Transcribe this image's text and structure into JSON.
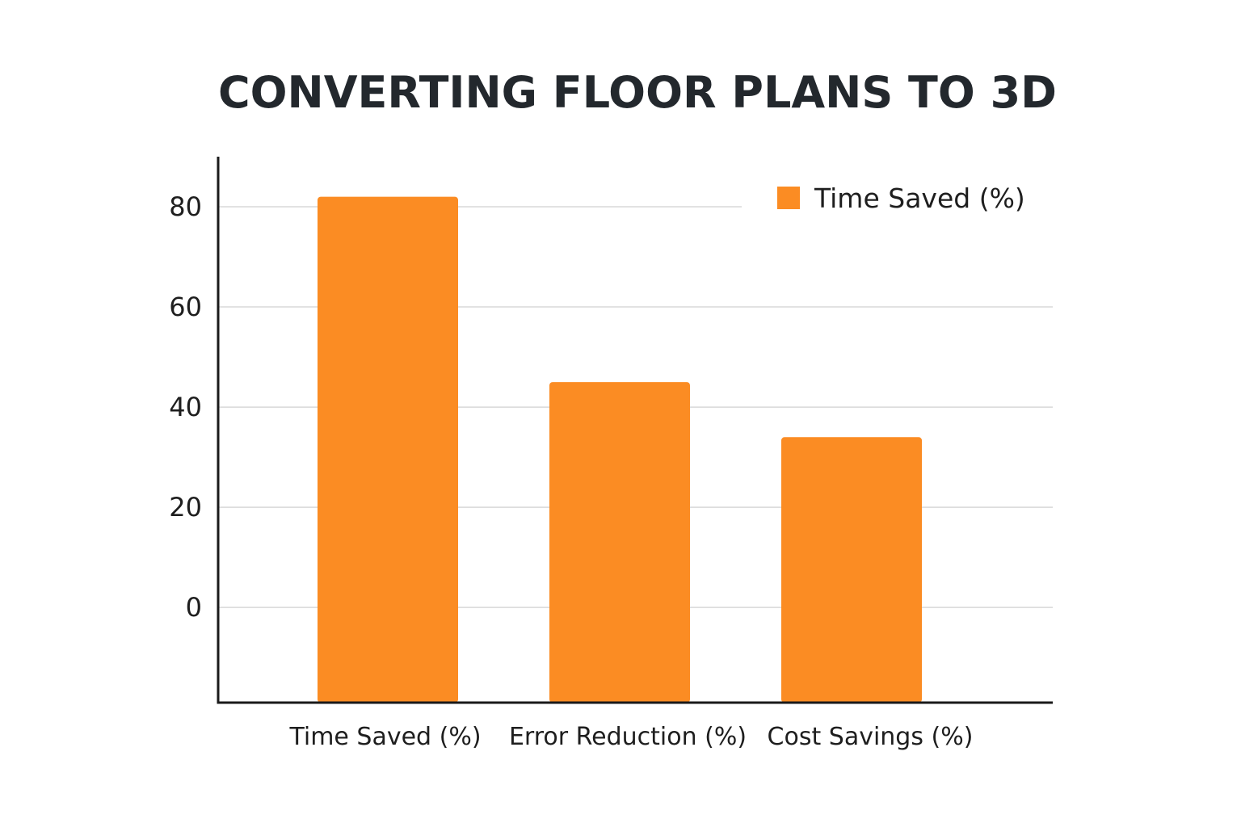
{
  "chart_data": {
    "type": "bar",
    "title": "CONVERTING FLOOR PLANS TO 3D",
    "categories": [
      "Time Saved (%)",
      "Error Reduction (%)",
      "Cost Savings (%)"
    ],
    "series": [
      {
        "name": "Time Saved (%)",
        "values": [
          82,
          45,
          34
        ]
      }
    ],
    "xlabel": "",
    "ylabel": "",
    "ylim": [
      -19,
      90
    ],
    "yticks": [
      0,
      20,
      40,
      60,
      80
    ],
    "grid": true,
    "legend_position": "top-right",
    "bar_color": "#fb8c23",
    "grid_color": "#d8d8d8",
    "axis_color": "#1a1a1a"
  }
}
